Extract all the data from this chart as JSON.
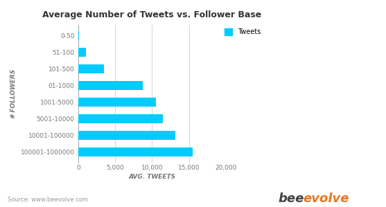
{
  "title": "Average Number of Tweets vs. Follower Base",
  "categories": [
    "100001-1000000",
    "10001-100000",
    "5001-10000",
    "1001-5000",
    "01-1000",
    "101-500",
    "51-100",
    "0-50"
  ],
  "values": [
    15500,
    13200,
    11500,
    10500,
    8700,
    3500,
    1000,
    50
  ],
  "bar_color": "#00ccff",
  "ylabel": "# FOLLOWERS",
  "xlabel": "AVG. TWEETS",
  "xlim": [
    0,
    20000
  ],
  "xticks": [
    0,
    5000,
    10000,
    15000,
    20000
  ],
  "xtick_labels": [
    "0",
    "5,000",
    "10,000",
    "15,000",
    "20,000"
  ],
  "legend_label": "Tweets",
  "source_text": "Source: www.beevolve.com",
  "bee_text_bee": "bee",
  "bee_text_evolve": "evolve",
  "bee_color": "#444444",
  "evolve_color": "#e87722",
  "title_fontsize": 9,
  "axis_label_fontsize": 6.5,
  "tick_fontsize": 6.5,
  "source_fontsize": 6,
  "background_color": "#ffffff",
  "grid_color": "#cccccc"
}
